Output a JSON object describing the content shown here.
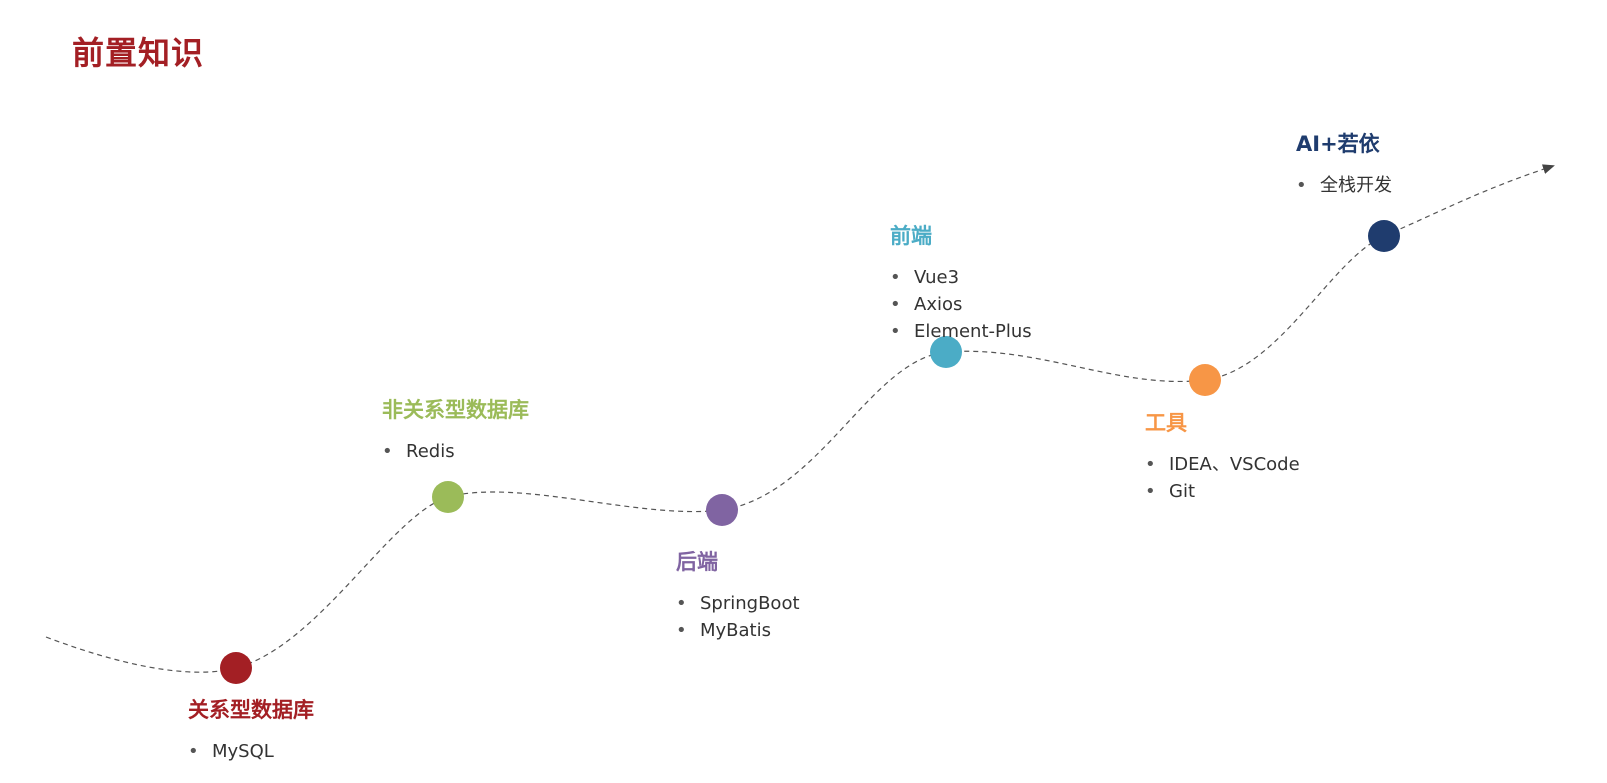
{
  "title": "前置知识",
  "nodes": [
    {
      "id": "relational-db",
      "title": "关系型数据库",
      "items": [
        "MySQL"
      ],
      "color": "#a31f24"
    },
    {
      "id": "nosql-db",
      "title": "非关系型数据库",
      "items": [
        "Redis"
      ],
      "color": "#9bbb59"
    },
    {
      "id": "backend",
      "title": "后端",
      "items": [
        "SpringBoot",
        "MyBatis"
      ],
      "color": "#8064a2"
    },
    {
      "id": "frontend",
      "title": "前端",
      "items": [
        "Vue3",
        "Axios",
        "Element-Plus"
      ],
      "color": "#4bacc6"
    },
    {
      "id": "tools",
      "title": "工具",
      "items": [
        "IDEA、VSCode",
        "Git"
      ],
      "color": "#f79646"
    },
    {
      "id": "ai-ruoyi",
      "title": "AI+若依",
      "items": [
        "全栈开发"
      ],
      "color": "#1f3c6e"
    }
  ],
  "bullet": "•"
}
